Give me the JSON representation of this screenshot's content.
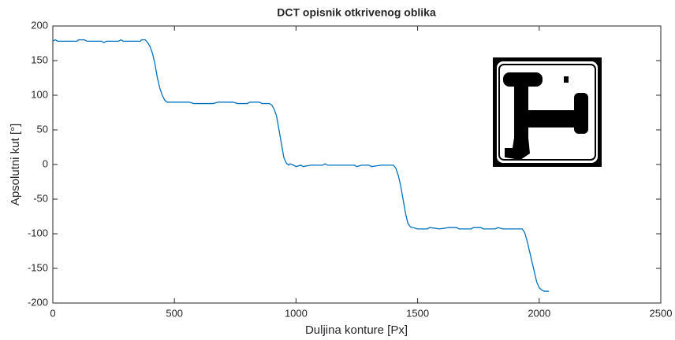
{
  "chart_data": {
    "type": "line",
    "title": "DCT opisnik otkrivenog oblika",
    "xlabel": "Duljina konture [Px]",
    "ylabel": "Apsolutni kut [°]",
    "color": "#0072bd",
    "xlim": [
      0,
      2500
    ],
    "xticks": [
      0,
      500,
      1000,
      1500,
      2000,
      2500
    ],
    "ylim": [
      -200,
      200
    ],
    "yticks": [
      -200,
      -150,
      -100,
      -50,
      0,
      50,
      100,
      150,
      200
    ],
    "x": [
      0,
      10,
      20,
      100,
      105,
      130,
      140,
      200,
      210,
      220,
      270,
      280,
      290,
      360,
      365,
      380,
      390,
      400,
      410,
      420,
      430,
      440,
      450,
      460,
      470,
      500,
      560,
      580,
      660,
      680,
      740,
      760,
      800,
      810,
      850,
      860,
      890,
      900,
      910,
      920,
      930,
      940,
      950,
      960,
      970,
      975,
      990,
      1000,
      1020,
      1030,
      1060,
      1110,
      1120,
      1130,
      1160,
      1240,
      1250,
      1270,
      1300,
      1310,
      1350,
      1400,
      1410,
      1420,
      1430,
      1440,
      1450,
      1460,
      1470,
      1500,
      1540,
      1550,
      1590,
      1630,
      1660,
      1670,
      1720,
      1730,
      1760,
      1770,
      1820,
      1830,
      1850,
      1930,
      1940,
      1950,
      1960,
      1970,
      1980,
      1990,
      2000,
      2010,
      2020,
      2040
    ],
    "values": [
      178,
      180,
      178,
      178,
      180,
      180,
      178,
      178,
      176,
      178,
      178,
      180,
      178,
      178,
      180,
      180,
      176,
      170,
      160,
      145,
      125,
      110,
      100,
      93,
      90,
      90,
      90,
      88,
      88,
      90,
      90,
      88,
      88,
      90,
      90,
      88,
      88,
      86,
      80,
      70,
      50,
      30,
      10,
      2,
      -1,
      1,
      -1,
      -3,
      -1,
      -3,
      -1,
      -1,
      1,
      -1,
      -1,
      -1,
      -3,
      -1,
      -1,
      -3,
      -1,
      -1,
      -5,
      -15,
      -30,
      -50,
      -70,
      -85,
      -90,
      -93,
      -93,
      -91,
      -93,
      -91,
      -91,
      -93,
      -93,
      -91,
      -91,
      -93,
      -93,
      -91,
      -93,
      -93,
      -98,
      -110,
      -125,
      -140,
      -155,
      -170,
      -178,
      -181,
      -183,
      -183
    ]
  }
}
